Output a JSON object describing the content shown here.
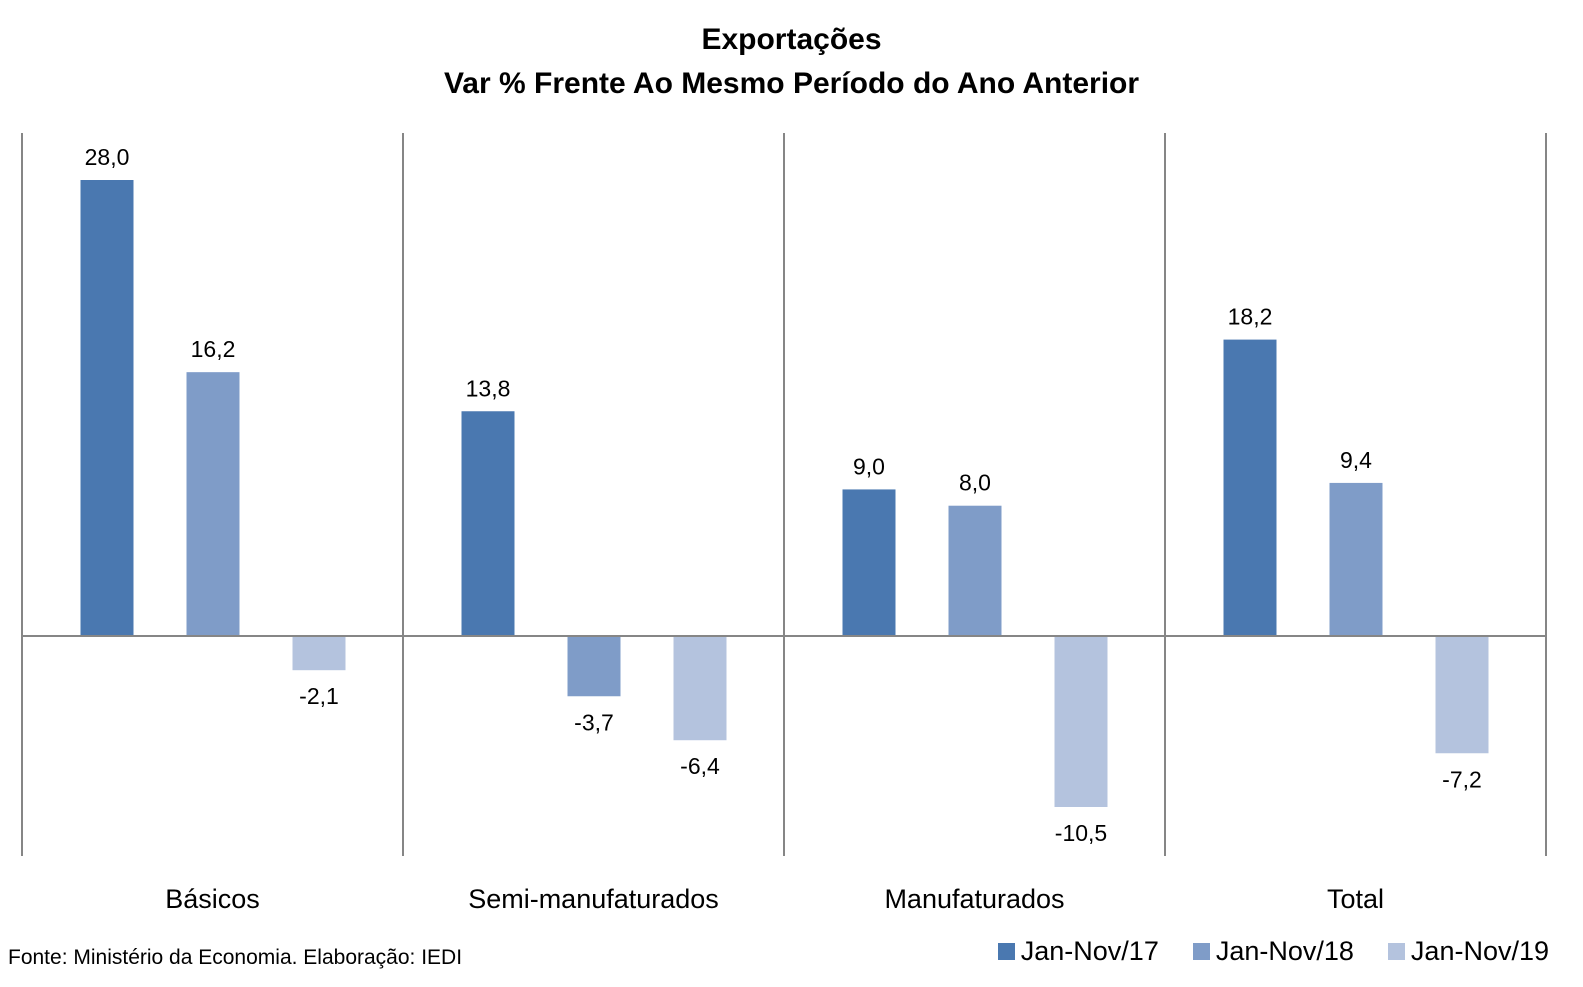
{
  "chart_data": {
    "type": "bar",
    "title": "Exportações",
    "subtitle": "Var % Frente Ao Mesmo Período do Ano Anterior",
    "xlabel": "",
    "ylabel": "",
    "categories": [
      "Básicos",
      "Semi-manufaturados",
      "Manufaturados",
      "Total"
    ],
    "series": [
      {
        "name": "Jan-Nov/17",
        "color": "#4a78b0",
        "values": [
          28.0,
          13.8,
          9.0,
          18.2
        ],
        "labels": [
          "28,0",
          "13,8",
          "9,0",
          "18,2"
        ]
      },
      {
        "name": "Jan-Nov/18",
        "color": "#7f9cc8",
        "values": [
          16.2,
          -3.7,
          8.0,
          9.4
        ],
        "labels": [
          "16,2",
          "-3,7",
          "8,0",
          "9,4"
        ]
      },
      {
        "name": "Jan-Nov/19",
        "color": "#b4c3de",
        "values": [
          -2.1,
          -6.4,
          -10.5,
          -7.2
        ],
        "labels": [
          "-2,1",
          "-6,4",
          "-10,5",
          "-7,2"
        ]
      }
    ],
    "ylim": [
      -13.5,
      30.9
    ],
    "grid": false,
    "legend_position": "bottom-right",
    "source": "Fonte: Ministério da Economia. Elaboração: IEDI"
  }
}
